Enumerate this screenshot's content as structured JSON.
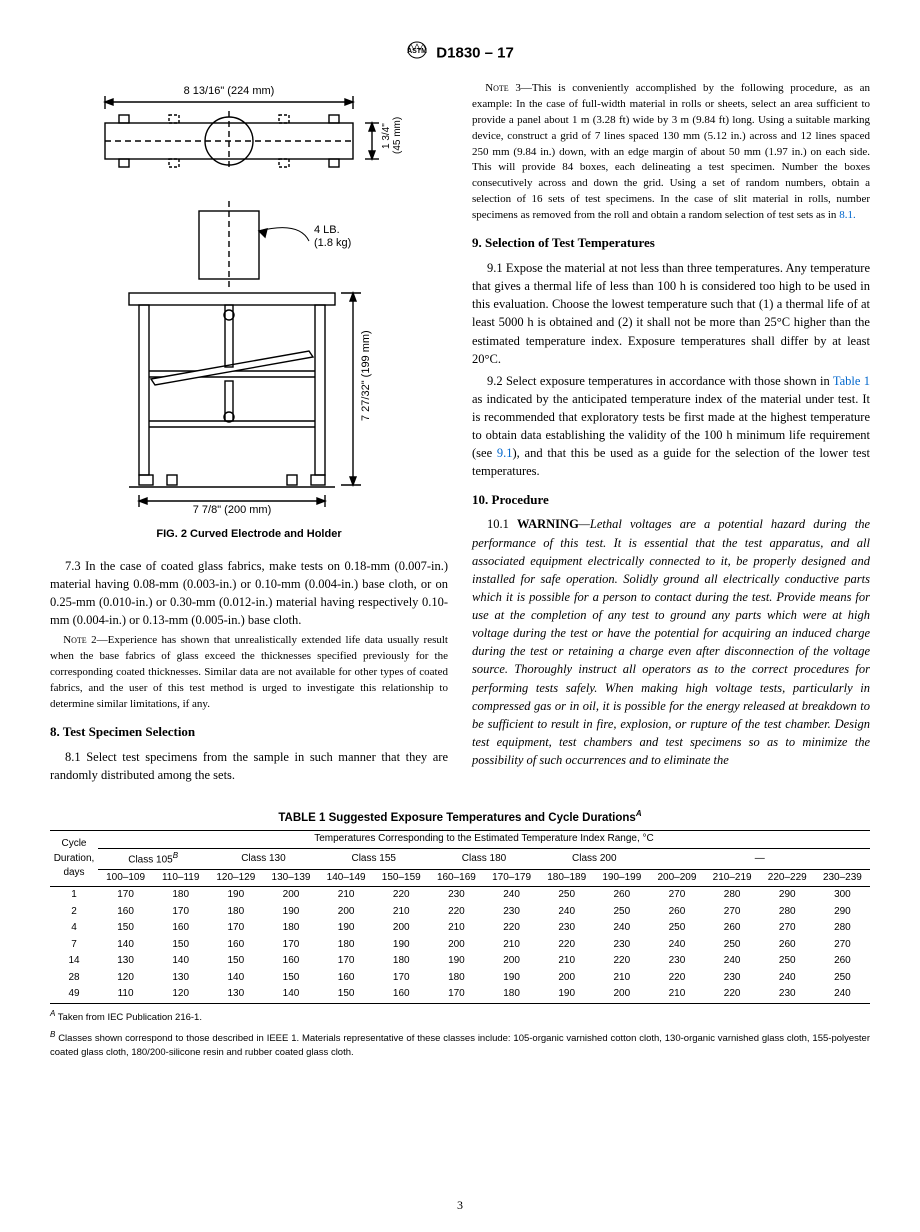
{
  "header": {
    "designation": "D1830 – 17"
  },
  "figure": {
    "caption": "FIG. 2  Curved Electrode and Holder",
    "dim_width_top": "8 13/16\" (224 mm)",
    "dim_height_top": "1 3/4\"\n(45 mm)",
    "weight_label": "4 LB.\n(1.8 kg)",
    "dim_height_side": "7 27/32\" (199 mm)",
    "dim_width_bottom": "7 7/8\" (200 mm)"
  },
  "left": {
    "p73": "7.3 In the case of coated glass fabrics, make tests on 0.18-mm (0.007-in.) material having 0.08-mm (0.003-in.) or 0.10-mm (0.004-in.) base cloth, or on 0.25-mm (0.010-in.) or 0.30-mm (0.012-in.) material having respectively 0.10-mm (0.004-in.) or 0.13-mm (0.005-in.) base cloth.",
    "note2_label": "Note 2",
    "note2": "—Experience has shown that unrealistically extended life data usually result when the base fabrics of glass exceed the thicknesses specified previously for the corresponding coated thicknesses. Similar data are not available for other types of coated fabrics, and the user of this test method is urged to investigate this relationship to determine similar limitations, if any.",
    "sec8_title": "8.  Test Specimen Selection",
    "p81": "8.1 Select test specimens from the sample in such manner that they are randomly distributed among the sets."
  },
  "right": {
    "note3_label": "Note 3",
    "note3a": "—This is conveniently accomplished by the following procedure, as an example: In the case of full-width material in rolls or sheets, select an area sufficient to provide a panel about 1 m (3.28 ft) wide by 3 m (9.84 ft) long. Using a suitable marking device, construct a grid of 7 lines spaced 130 mm (5.12 in.) across and 12 lines spaced 250 mm (9.84 in.) down, with an edge margin of about 50 mm (1.97 in.) on each side. This will provide 84 boxes, each delineating a test specimen. Number the boxes consecutively across and down the grid. Using a set of random numbers, obtain a selection of 16 sets of test specimens. In the case of slit material in rolls, number specimens as removed from the roll and obtain a random selection of test sets as in ",
    "note3_link": "8.1.",
    "sec9_title": "9.  Selection of Test Temperatures",
    "p91": "9.1 Expose the material at not less than three temperatures. Any temperature that gives a thermal life of less than 100 h is considered too high to be used in this evaluation. Choose the lowest temperature such that (1) a thermal life of at least 5000 h is obtained and (2) it shall not be more than 25°C higher than the estimated temperature index. Exposure temperatures shall differ by at least 20°C.",
    "p92a": "9.2 Select exposure temperatures in accordance with those shown in ",
    "p92_link1": "Table 1",
    "p92b": " as indicated by the anticipated temperature index of the material under test. It is recommended that exploratory tests be first made at the highest temperature to obtain data establishing the validity of the 100 h minimum life requirement (see ",
    "p92_link2": "9.1",
    "p92c": "), and that this be used as a guide for the selection of the lower test temperatures.",
    "sec10_title": "10.  Procedure",
    "p101_lead": "10.1 ",
    "p101_warn": "WARNING",
    "p101_body": "—Lethal voltages are a potential hazard during the performance of this test. It is essential that the test apparatus, and all associated equipment electrically connected to it, be properly designed and installed for safe operation. Solidly ground all electrically conductive parts which it is possible for a person to contact during the test. Provide means for use at the completion of any test to ground any parts which were at high voltage during the test or have the potential for acquiring an induced charge during the test or retaining a charge even after disconnection of the voltage source. Thoroughly instruct all operators as to the correct procedures for performing tests safely. When making high voltage tests, particularly in compressed gas or in oil, it is possible for the energy released at breakdown to be sufficient to result in fire, explosion, or rupture of the test chamber. Design test equipment, test chambers and test specimens so as to minimize the possibility of such occurrences and to eliminate the"
  },
  "table": {
    "title": "TABLE 1 Suggested Exposure Temperatures and Cycle Durations",
    "title_sup": "A",
    "cycle_header": "Cycle\nDuration,\ndays",
    "temp_header": "Temperatures Corresponding to the Estimated Temperature Index Range, °C",
    "groups": [
      "Class 105",
      "Class 130",
      "Class 155",
      "Class 180",
      "Class 200",
      "—"
    ],
    "group_sup": [
      "B",
      "",
      "",
      "",
      "",
      ""
    ],
    "ranges": [
      "100–109",
      "110–119",
      "120–129",
      "130–139",
      "140–149",
      "150–159",
      "160–169",
      "170–179",
      "180–189",
      "190–199",
      "200–209",
      "210–219",
      "220–229",
      "230–239"
    ],
    "cycle_days": [
      "1",
      "2",
      "4",
      "7",
      "14",
      "28",
      "49"
    ],
    "rows": [
      [
        170,
        180,
        190,
        200,
        210,
        220,
        230,
        240,
        250,
        260,
        270,
        280,
        290,
        300
      ],
      [
        160,
        170,
        180,
        190,
        200,
        210,
        220,
        230,
        240,
        250,
        260,
        270,
        280,
        290
      ],
      [
        150,
        160,
        170,
        180,
        190,
        200,
        210,
        220,
        230,
        240,
        250,
        260,
        270,
        280
      ],
      [
        140,
        150,
        160,
        170,
        180,
        190,
        200,
        210,
        220,
        230,
        240,
        250,
        260,
        270
      ],
      [
        130,
        140,
        150,
        160,
        170,
        180,
        190,
        200,
        210,
        220,
        230,
        240,
        250,
        260
      ],
      [
        120,
        130,
        140,
        150,
        160,
        170,
        180,
        190,
        200,
        210,
        220,
        230,
        240,
        250
      ],
      [
        110,
        120,
        130,
        140,
        150,
        160,
        170,
        180,
        190,
        200,
        210,
        220,
        230,
        240
      ]
    ],
    "footnoteA_sup": "A",
    "footnoteA": " Taken from IEC Publication 216-1.",
    "footnoteB_sup": "B",
    "footnoteB": " Classes shown correspond to those described in IEEE 1. Materials representative of these classes include: 105-organic varnished cotton cloth, 130-organic varnished glass cloth, 155-polyester coated glass cloth, 180/200-silicone resin and rubber coated glass cloth."
  },
  "page_number": "3"
}
